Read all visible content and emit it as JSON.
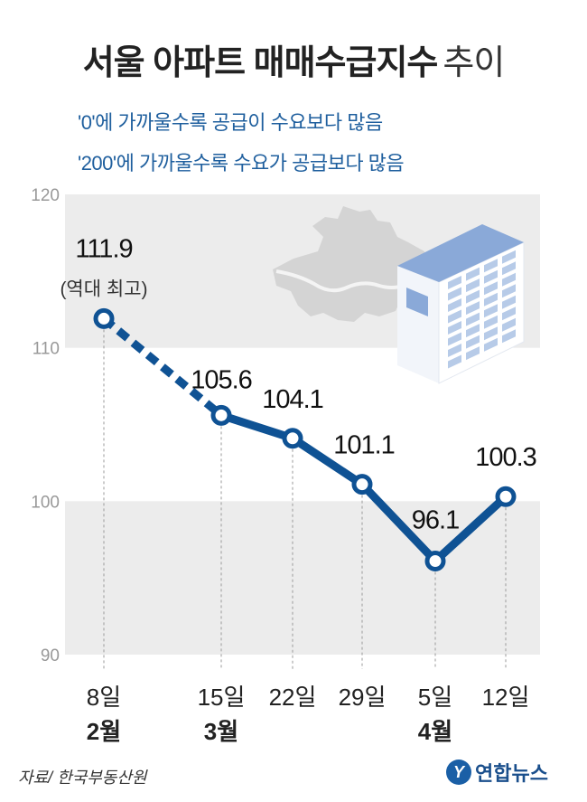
{
  "title_main": "서울 아파트 매매수급지수",
  "title_sub": "추이",
  "notes": [
    "'0'에 가까울수록 공급이 수요보다 많음",
    "'200'에 가까울수록 수요가 공급보다 많음"
  ],
  "source": "자료/ 한국부동산원",
  "logo_text": "연합뉴스",
  "logo_mark": "Y",
  "colors": {
    "line": "#0f5294",
    "band": "#ececec",
    "map": "#d4d4d4",
    "text_blue": "#1f5f9e"
  },
  "chart_data": {
    "type": "line",
    "ylim": [
      90,
      120
    ],
    "yticks": [
      90,
      100,
      110,
      120
    ],
    "grid": "alternating-bands",
    "categories": [
      "8일",
      "15일",
      "22일",
      "29일",
      "5일",
      "12일"
    ],
    "month_labels": [
      "2월",
      "3월",
      "",
      "",
      "4월",
      ""
    ],
    "values": [
      111.9,
      105.6,
      104.1,
      101.1,
      96.1,
      100.3
    ],
    "value_labels": [
      "111.9",
      "105.6",
      "104.1",
      "101.1",
      "96.1",
      "100.3"
    ],
    "annotation": "(역대 최고)",
    "dashed_segment_to_index": 1
  }
}
